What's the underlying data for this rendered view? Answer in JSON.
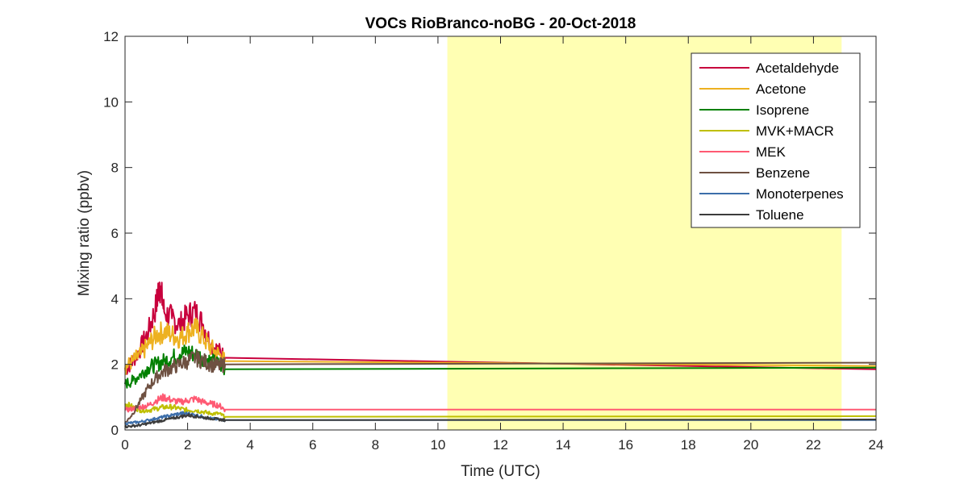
{
  "chart_data": {
    "type": "line",
    "title": "VOCs RioBranco-noBG - 20-Oct-2018",
    "xlabel": "Time (UTC)",
    "ylabel": "Mixing ratio (ppbv)",
    "xlim": [
      0,
      24
    ],
    "ylim": [
      0,
      12
    ],
    "xticks": [
      "0",
      "2",
      "4",
      "6",
      "8",
      "10",
      "12",
      "14",
      "16",
      "18",
      "20",
      "22",
      "24"
    ],
    "yticks": [
      "0",
      "2",
      "4",
      "6",
      "8",
      "10",
      "12"
    ],
    "grid": false,
    "legend_position": "top-right",
    "highlight_span": {
      "x_start": 10.3,
      "x_end": 22.9,
      "color": "#ffffb3"
    },
    "series": [
      {
        "name": "Acetaldehyde",
        "color": "#c8003c",
        "x": [
          0,
          0.25,
          0.5,
          0.75,
          1.0,
          1.1,
          1.25,
          1.5,
          1.75,
          2.0,
          2.25,
          2.5,
          2.75,
          3.0,
          3.2,
          24
        ],
        "y": [
          1.8,
          2.1,
          2.5,
          3.0,
          3.8,
          4.5,
          3.6,
          3.4,
          3.2,
          3.5,
          3.6,
          3.2,
          2.6,
          2.4,
          2.2,
          1.85
        ]
      },
      {
        "name": "Acetone",
        "color": "#edb120",
        "x": [
          0,
          0.25,
          0.5,
          0.75,
          1.0,
          1.25,
          1.5,
          1.75,
          2.0,
          2.25,
          2.5,
          2.75,
          3.0,
          3.2,
          24
        ],
        "y": [
          1.9,
          2.1,
          2.3,
          2.6,
          2.9,
          3.0,
          2.9,
          2.8,
          3.0,
          3.1,
          2.8,
          2.5,
          2.3,
          2.1,
          1.95
        ]
      },
      {
        "name": "Isoprene",
        "color": "#008000",
        "x": [
          0,
          0.25,
          0.5,
          0.75,
          1.0,
          1.25,
          1.5,
          1.75,
          2.0,
          2.25,
          2.5,
          2.75,
          3.0,
          3.2,
          24
        ],
        "y": [
          1.4,
          1.5,
          1.7,
          1.9,
          2.0,
          2.1,
          2.2,
          2.3,
          2.4,
          2.3,
          2.2,
          2.1,
          2.0,
          1.85,
          1.9
        ]
      },
      {
        "name": "MVK+MACR",
        "color": "#bfbf00",
        "x": [
          0,
          0.25,
          0.5,
          0.75,
          1.0,
          1.25,
          1.5,
          1.75,
          2.0,
          2.25,
          2.5,
          2.75,
          3.0,
          3.2,
          24
        ],
        "y": [
          0.8,
          0.7,
          0.6,
          0.6,
          0.65,
          0.7,
          0.7,
          0.65,
          0.6,
          0.6,
          0.55,
          0.5,
          0.5,
          0.4,
          0.42
        ]
      },
      {
        "name": "MEK",
        "color": "#ff5a73",
        "x": [
          0,
          0.25,
          0.5,
          0.75,
          1.0,
          1.25,
          1.5,
          1.75,
          2.0,
          2.25,
          2.5,
          2.75,
          3.0,
          3.2,
          24
        ],
        "y": [
          0.6,
          0.65,
          0.7,
          0.75,
          0.9,
          1.0,
          0.9,
          0.85,
          0.9,
          0.95,
          0.85,
          0.8,
          0.75,
          0.62,
          0.62
        ]
      },
      {
        "name": "Benzene",
        "color": "#6e5041",
        "x": [
          0,
          0.25,
          0.5,
          0.75,
          1.0,
          1.25,
          1.5,
          1.75,
          2.0,
          2.25,
          2.5,
          2.75,
          3.0,
          3.2,
          24
        ],
        "y": [
          0.2,
          0.5,
          0.9,
          1.3,
          1.6,
          1.8,
          1.9,
          2.0,
          2.1,
          2.2,
          2.1,
          2.0,
          1.95,
          2.0,
          2.05
        ]
      },
      {
        "name": "Monoterpenes",
        "color": "#3c6eaa",
        "x": [
          0,
          0.25,
          0.5,
          0.75,
          1.0,
          1.25,
          1.5,
          1.75,
          2.0,
          2.25,
          2.5,
          2.75,
          3.0,
          3.2,
          24
        ],
        "y": [
          0.2,
          0.22,
          0.25,
          0.3,
          0.35,
          0.4,
          0.45,
          0.5,
          0.5,
          0.45,
          0.4,
          0.35,
          0.32,
          0.3,
          0.3
        ]
      },
      {
        "name": "Toluene",
        "color": "#3c3c3c",
        "x": [
          0,
          0.25,
          0.5,
          0.75,
          1.0,
          1.25,
          1.5,
          1.75,
          2.0,
          2.25,
          2.5,
          2.75,
          3.0,
          3.2,
          24
        ],
        "y": [
          0.1,
          0.12,
          0.15,
          0.2,
          0.25,
          0.3,
          0.35,
          0.4,
          0.45,
          0.42,
          0.38,
          0.35,
          0.32,
          0.3,
          0.32
        ]
      }
    ]
  }
}
